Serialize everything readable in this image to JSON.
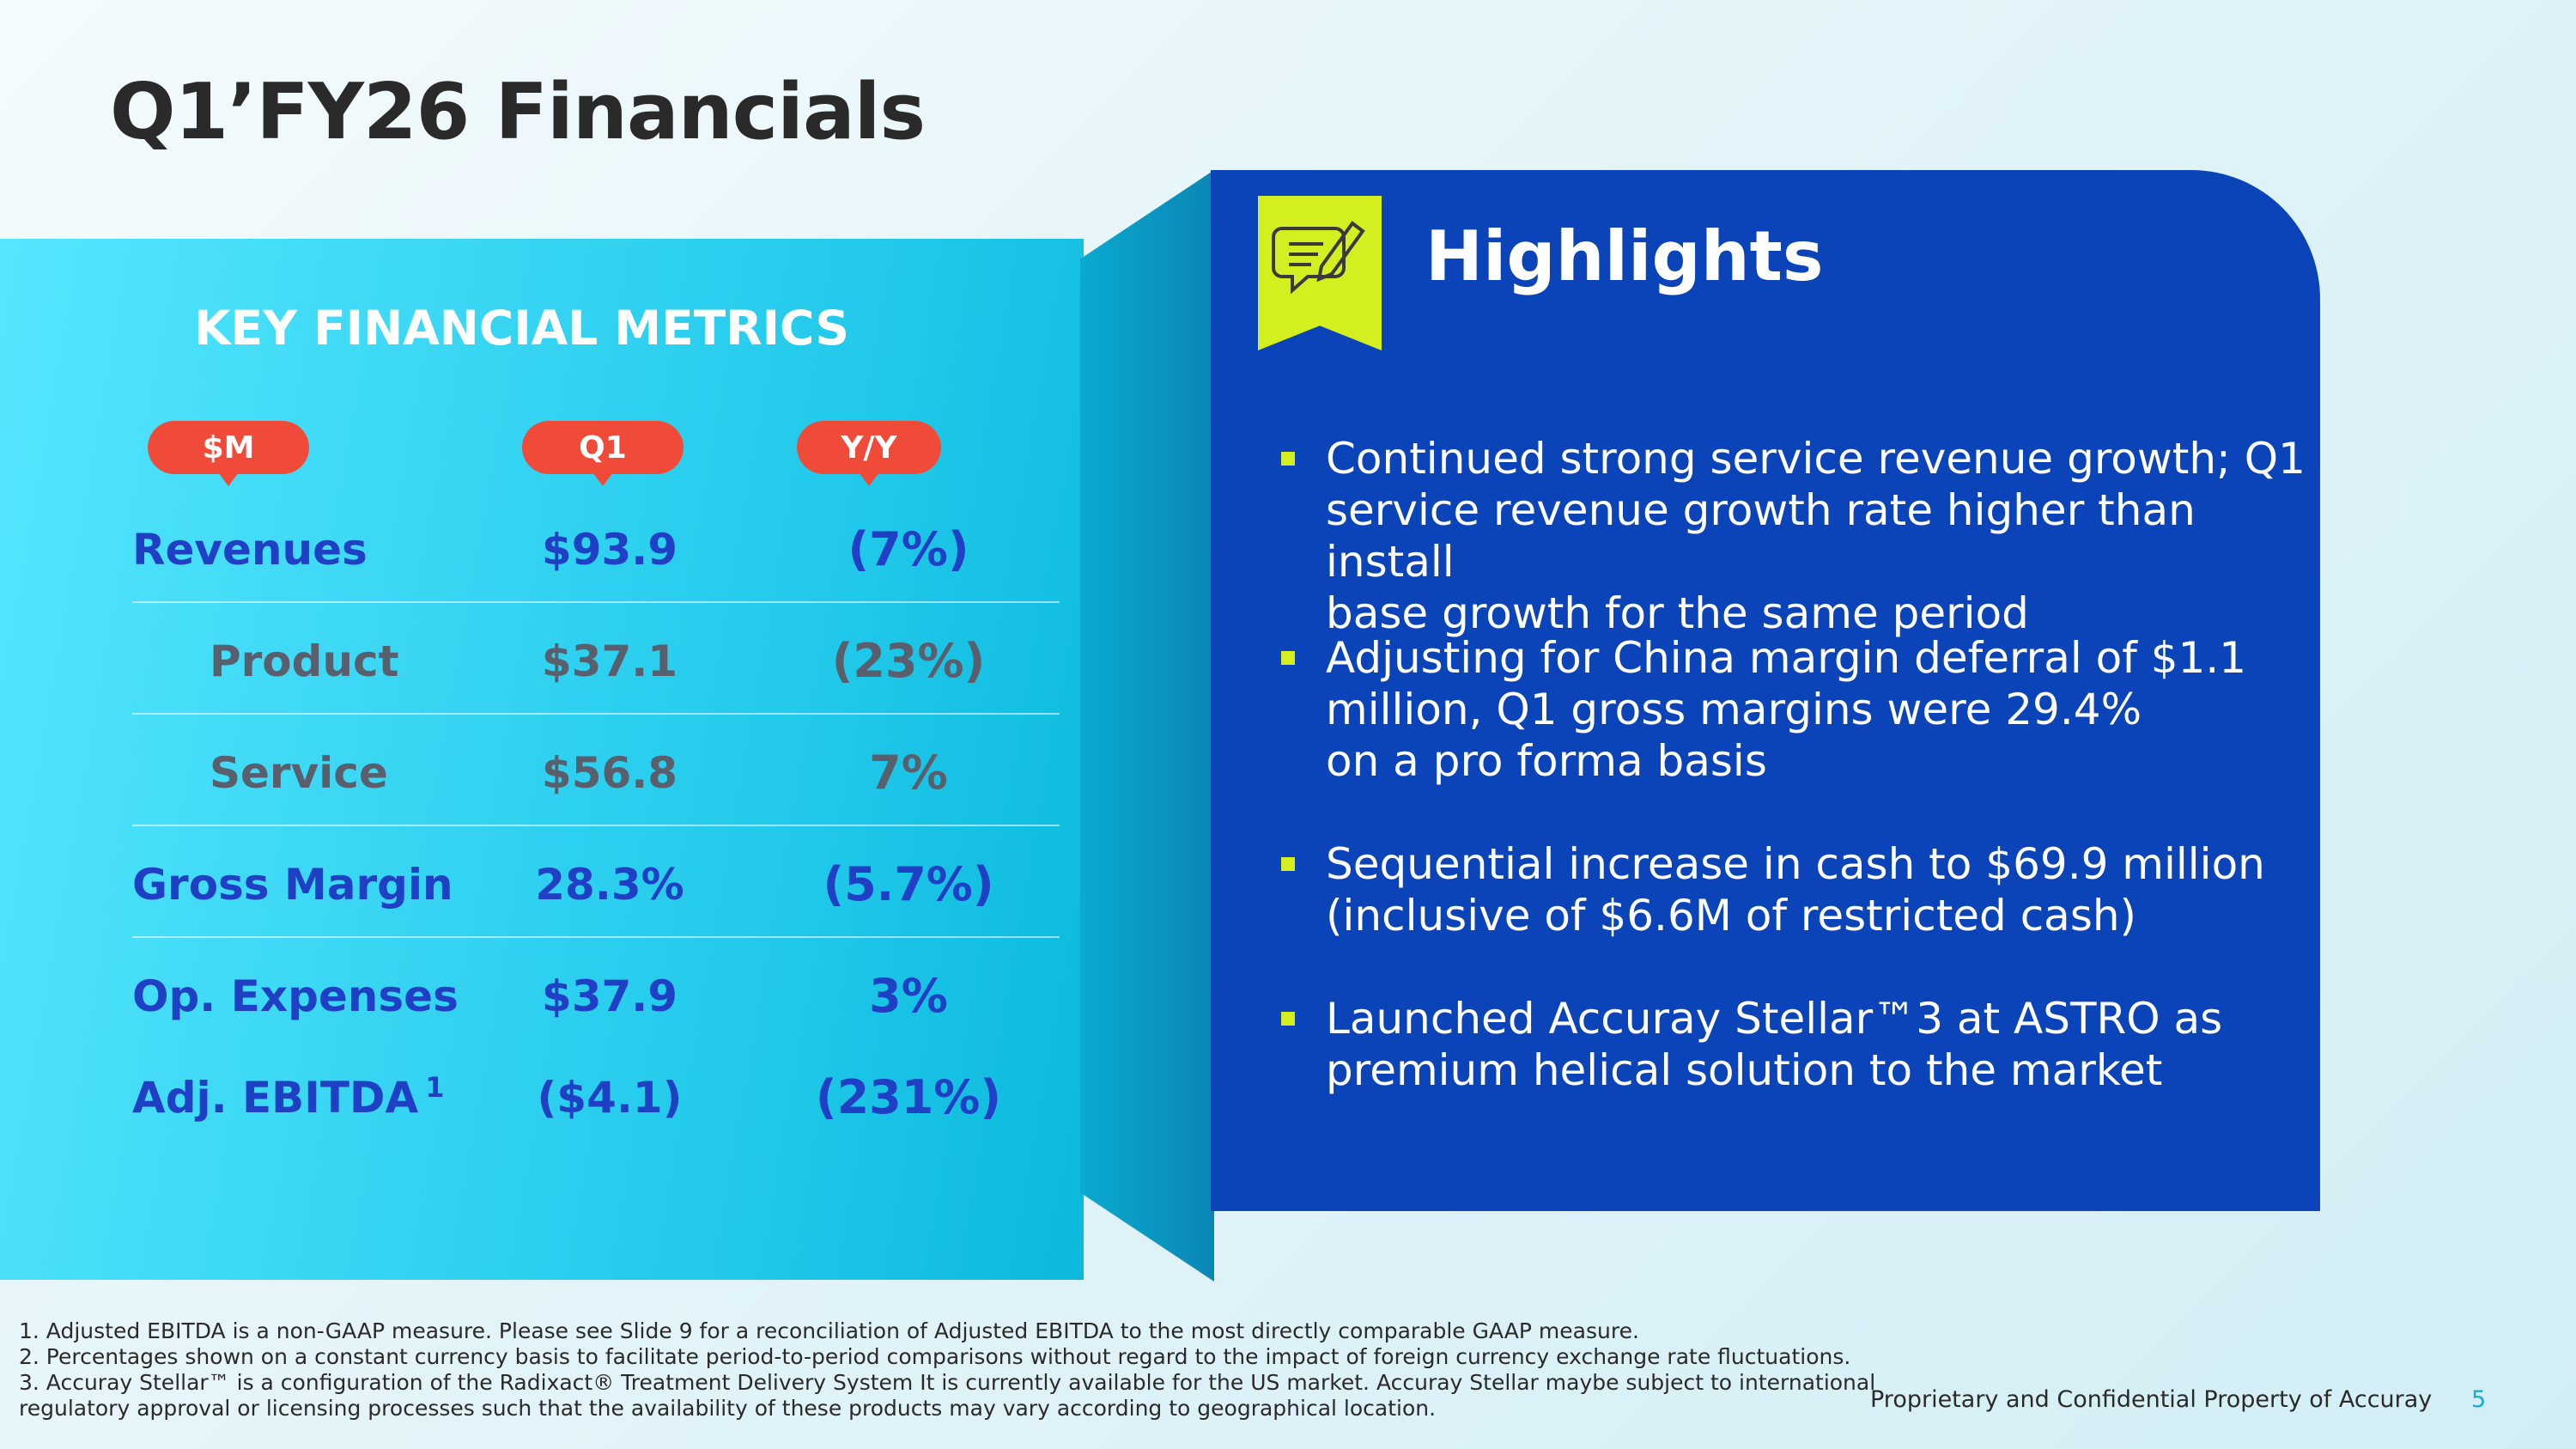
{
  "title": "Q1’FY26 Financials",
  "metrics": {
    "heading": "KEY FINANCIAL METRICS",
    "columns": [
      "$M",
      "Q1",
      "Y/Y"
    ],
    "rows": [
      {
        "label": "Revenues",
        "q1": "$93.9",
        "yy": "(7%)"
      },
      {
        "label": "Product",
        "q1": "$37.1",
        "yy": "(23%)"
      },
      {
        "label": "Service",
        "q1": "$56.8",
        "yy": "7%"
      },
      {
        "label": "Gross Margin",
        "q1": "28.3%",
        "yy": "(5.7%)"
      },
      {
        "label": "Op. Expenses",
        "q1": "$37.9",
        "yy": "3%"
      },
      {
        "label": "Adj. EBITDA",
        "sup": "1",
        "q1": "($4.1)",
        "yy": "(231%)"
      }
    ]
  },
  "highlights": {
    "title": "Highlights",
    "badge_icon": "chat-pencil-icon",
    "bullets": [
      "Continued strong service revenue growth; Q1\nservice revenue growth rate higher than install\nbase growth for the same period",
      "Adjusting for China margin deferral of $1.1\nmillion, Q1 gross margins were 29.4%\non a pro forma basis",
      "Sequential increase in cash to $69.9 million\n(inclusive of $6.6M of restricted cash)",
      "Launched Accuray Stellar™3 at ASTRO as\npremium helical solution to the market"
    ]
  },
  "footnotes": [
    "1. Adjusted EBITDA is a non-GAAP measure.  Please see Slide 9 for a reconciliation of Adjusted EBITDA to the most directly comparable GAAP measure.",
    "2. Percentages shown on a constant currency basis to facilitate period-to-period comparisons without regard to the impact of foreign currency exchange rate fluctuations.",
    "3. Accuray Stellar™ is a configuration of the Radixact®  Treatment Delivery System It is currently available for the US market. Accuray Stellar maybe subject to international",
    "regulatory approval or licensing processes such that the availability of these products may vary according to geographical location."
  ],
  "footer": {
    "confidential": "Proprietary and Confidential Property of Accuray",
    "page": "5"
  },
  "colors": {
    "cyan_panel": "#22c9ea",
    "blue_panel": "#0a44b8",
    "accent_lime": "#d4ef1f",
    "pill_red": "#f04a38",
    "metric_blue": "#1f3fc4",
    "metric_gray": "#5a5f6e"
  }
}
